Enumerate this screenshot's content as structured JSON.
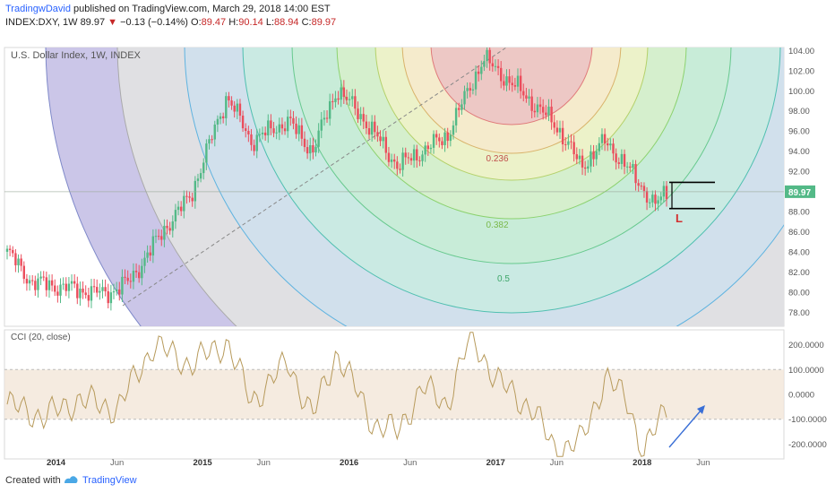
{
  "header": {
    "author": "TradingwDavid",
    "published_text": " published on TradingView.com, March 29, 2018 14:00 EST",
    "symbol": "INDEX:DXY, 1W",
    "last": "89.97",
    "change": "−0.13 (−0.14%)",
    "o_label": "O:",
    "o_value": "89.47",
    "h_label": "H:",
    "h_value": "90.14",
    "l_label": "L:",
    "l_value": "88.94",
    "c_label": "C:",
    "c_value": "89.97"
  },
  "footer": {
    "created_with": "Created with",
    "brand": "TradingView"
  },
  "colors": {
    "up": "#53b987",
    "down": "#eb4d5c",
    "cci_line": "#b79a5b",
    "arrow": "#3a6fd6"
  },
  "chart_data": [
    {
      "type": "candlestick",
      "title": "U.S. Dollar Index, 1W, INDEX",
      "last_price_label": "89.97",
      "ylim": [
        76.6,
        104.3
      ],
      "y_ticks": [
        "104.00",
        "102.00",
        "100.00",
        "98.00",
        "96.00",
        "94.00",
        "92.00",
        "90.00",
        "88.00",
        "86.00",
        "84.00",
        "82.00",
        "80.00",
        "78.00"
      ],
      "x_ticks": [
        "2014",
        "Jun",
        "2015",
        "Jun",
        "2016",
        "Jun",
        "2017",
        "Jun",
        "2018",
        "Jun"
      ],
      "fib_labels": [
        "0.236",
        "0.382",
        "0.5"
      ],
      "annotation": "L",
      "price_path_keypoints": [
        {
          "date": "2013-09",
          "close": 84.0
        },
        {
          "date": "2013-11",
          "close": 81.0
        },
        {
          "date": "2014-05",
          "close": 79.8
        },
        {
          "date": "2014-07",
          "close": 81.0
        },
        {
          "date": "2014-10",
          "close": 86.5
        },
        {
          "date": "2014-12",
          "close": 89.5
        },
        {
          "date": "2015-03",
          "close": 99.5
        },
        {
          "date": "2015-05",
          "close": 95.0
        },
        {
          "date": "2015-08",
          "close": 97.0
        },
        {
          "date": "2015-10",
          "close": 94.0
        },
        {
          "date": "2015-12",
          "close": 100.2
        },
        {
          "date": "2016-02",
          "close": 97.5
        },
        {
          "date": "2016-05",
          "close": 92.5
        },
        {
          "date": "2016-09",
          "close": 95.5
        },
        {
          "date": "2016-12",
          "close": 103.2
        },
        {
          "date": "2017-03",
          "close": 100.0
        },
        {
          "date": "2017-06",
          "close": 96.5
        },
        {
          "date": "2017-08",
          "close": 92.5
        },
        {
          "date": "2017-10",
          "close": 95.0
        },
        {
          "date": "2018-01",
          "close": 90.5
        },
        {
          "date": "2018-02",
          "close": 88.5
        },
        {
          "date": "2018-03",
          "close": 89.97
        }
      ],
      "range_box": {
        "high": 90.9,
        "low": 88.3
      }
    },
    {
      "type": "line",
      "title": "CCI (20, close)",
      "ylim": [
        -260,
        260
      ],
      "y_ticks": [
        "200.0000",
        "100.0000",
        "0.0000",
        "-100.0000",
        "-200.0000"
      ],
      "band": [
        100,
        -100
      ],
      "series_keypoints": [
        {
          "date": "2013-09",
          "value": -40
        },
        {
          "date": "2013-12",
          "value": -90
        },
        {
          "date": "2014-03",
          "value": -20
        },
        {
          "date": "2014-06",
          "value": -60
        },
        {
          "date": "2014-09",
          "value": 200
        },
        {
          "date": "2014-12",
          "value": 120
        },
        {
          "date": "2015-03",
          "value": 210
        },
        {
          "date": "2015-05",
          "value": -30
        },
        {
          "date": "2015-08",
          "value": 130
        },
        {
          "date": "2015-10",
          "value": -90
        },
        {
          "date": "2015-12",
          "value": 170
        },
        {
          "date": "2016-03",
          "value": -120
        },
        {
          "date": "2016-05",
          "value": -150
        },
        {
          "date": "2016-07",
          "value": 30
        },
        {
          "date": "2016-09",
          "value": -40
        },
        {
          "date": "2016-11",
          "value": 240
        },
        {
          "date": "2017-01",
          "value": 60
        },
        {
          "date": "2017-04",
          "value": -60
        },
        {
          "date": "2017-06",
          "value": -230
        },
        {
          "date": "2017-08",
          "value": -190
        },
        {
          "date": "2017-10",
          "value": 70
        },
        {
          "date": "2017-12",
          "value": -40
        },
        {
          "date": "2018-01",
          "value": -250
        },
        {
          "date": "2018-03",
          "value": -50
        }
      ]
    }
  ]
}
